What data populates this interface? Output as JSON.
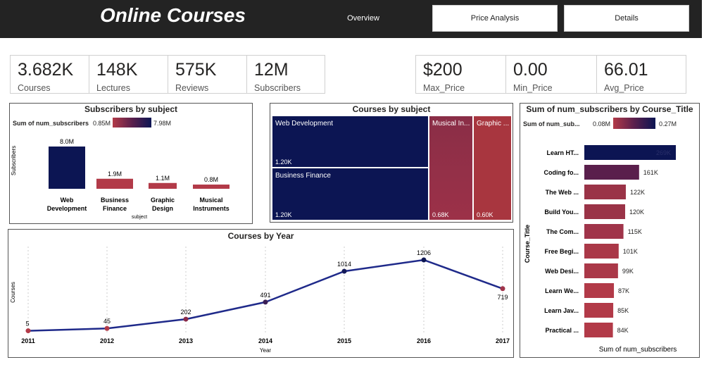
{
  "header": {
    "title": "Online Courses",
    "nav": {
      "overview": "Overview",
      "price_analysis": "Price Analysis",
      "details": "Details"
    }
  },
  "kpis_left": [
    {
      "value": "3.682K",
      "label": "Courses"
    },
    {
      "value": "148K",
      "label": "Lectures"
    },
    {
      "value": "575K",
      "label": "Reviews"
    },
    {
      "value": "12M",
      "label": "Subscribers"
    }
  ],
  "kpis_right": [
    {
      "value": "$200",
      "label": "Max_Price"
    },
    {
      "value": "0.00",
      "label": "Min_Price"
    },
    {
      "value": "66.01",
      "label": "Avg_Price"
    }
  ],
  "colors": {
    "navy": "#0c1553",
    "red": "#b23a48",
    "header_bg": "#232323",
    "line": "#1f2a8a"
  },
  "subscribers_by_subject": {
    "title": "Subscribers by subject",
    "legend_label": "Sum of num_subscribers",
    "legend_min": "0.85M",
    "legend_max": "7.98M",
    "ylabel": "Subscribers",
    "xlabel": "subject",
    "chart_data": {
      "type": "bar",
      "categories": [
        "Web Development",
        "Business Finance",
        "Graphic Design",
        "Musical Instruments"
      ],
      "category_lines": [
        [
          "Web",
          "Development"
        ],
        [
          "Business",
          "Finance"
        ],
        [
          "Graphic",
          "Design"
        ],
        [
          "Musical",
          "Instruments"
        ]
      ],
      "values": [
        8.0,
        1.9,
        1.1,
        0.8
      ],
      "data_labels": [
        "8.0M",
        "1.9M",
        "1.1M",
        "0.8M"
      ],
      "colors": [
        "#0c1553",
        "#b23a48",
        "#b23a48",
        "#b23a48"
      ]
    }
  },
  "courses_by_subject": {
    "title": "Courses by subject",
    "chart_data": {
      "type": "treemap",
      "items": [
        {
          "name": "Web Development",
          "label": "Web Development",
          "value_label": "1.20K",
          "value": 1200
        },
        {
          "name": "Business Finance",
          "label": "Business Finance",
          "value_label": "1.20K",
          "value": 1195
        },
        {
          "name": "Musical Instruments",
          "label": "Musical In...",
          "value_label": "0.68K",
          "value": 680
        },
        {
          "name": "Graphic Design",
          "label": "Graphic ...",
          "value_label": "0.60K",
          "value": 603
        }
      ]
    }
  },
  "subscribers_by_title": {
    "title": "Sum of num_subscribers by Course_Title",
    "legend_label": "Sum of num_sub...",
    "legend_min": "0.08M",
    "legend_max": "0.27M",
    "ylabel": "Course_Title",
    "xlabel": "Sum of num_subscribers",
    "chart_data": {
      "type": "bar",
      "orientation": "horizontal",
      "categories": [
        "Learn HT...",
        "Coding fo...",
        "The Web ...",
        "Build You...",
        "The Com...",
        "Free Begi...",
        "Web Desi...",
        "Learn We...",
        "Learn Jav...",
        "Practical ..."
      ],
      "values": [
        269,
        161,
        122,
        120,
        115,
        101,
        99,
        87,
        85,
        84
      ],
      "data_labels": [
        "269K",
        "161K",
        "122K",
        "120K",
        "115K",
        "101K",
        "99K",
        "87K",
        "85K",
        "84K"
      ],
      "colors": [
        "#0c1553",
        "#5a1f4c",
        "#9a3347",
        "#9a3347",
        "#a0344a",
        "#aa3848",
        "#aa3848",
        "#b23a48",
        "#b23a48",
        "#b23a48"
      ]
    }
  },
  "courses_by_year": {
    "title": "Courses by Year",
    "ylabel": "Courses",
    "xlabel": "Year",
    "chart_data": {
      "type": "line",
      "x": [
        "2011",
        "2012",
        "2013",
        "2014",
        "2015",
        "2016",
        "2017"
      ],
      "values": [
        5,
        45,
        202,
        491,
        1014,
        1206,
        719
      ],
      "data_labels": [
        "5",
        "45",
        "202",
        "491",
        "1014",
        "1206",
        "719"
      ],
      "point_colors": [
        "#b23a48",
        "#b23a48",
        "#8a2a48",
        "#3a1f55",
        "#141a5a",
        "#0c1553",
        "#a0344a"
      ]
    }
  }
}
